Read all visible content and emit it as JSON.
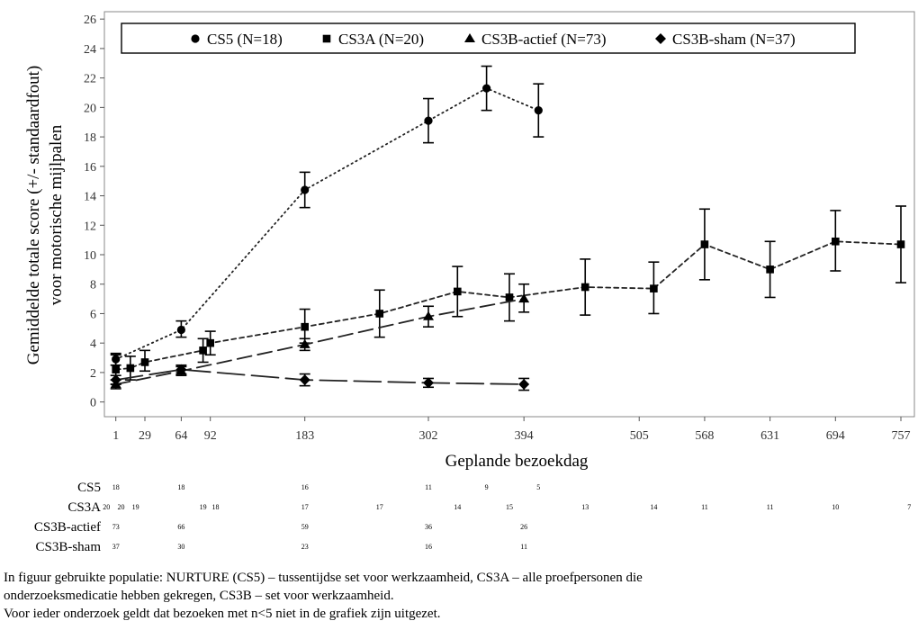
{
  "chart_data": {
    "type": "line",
    "xlabel": "Geplande bezoekdag",
    "ylabel_line1": "Gemiddelde totale score (+/- standaardfout)",
    "ylabel_line2": "voor motorische mijlpalen",
    "xlim": [
      -10,
      770
    ],
    "ylim": [
      -1,
      26.5
    ],
    "x_ticks": [
      1,
      29,
      64,
      92,
      183,
      302,
      394,
      505,
      568,
      631,
      694,
      757
    ],
    "y_ticks": [
      0,
      2,
      4,
      6,
      8,
      10,
      12,
      14,
      16,
      18,
      20,
      22,
      24,
      26
    ],
    "grid": false,
    "legend_position": "top",
    "series": [
      {
        "name": "CS5 (N=18)",
        "marker": "circle",
        "dash": "1.5,4",
        "x": [
          1,
          64,
          183,
          302,
          358,
          408
        ],
        "y": [
          2.9,
          4.9,
          14.4,
          19.1,
          21.3,
          19.8
        ],
        "err_low": [
          2.5,
          4.4,
          13.2,
          17.6,
          19.8,
          18.0
        ],
        "err_high": [
          3.3,
          5.5,
          15.6,
          20.6,
          22.8,
          21.6
        ]
      },
      {
        "name": "CS3A (N=20)",
        "marker": "square",
        "dash": "5,4",
        "x": [
          1,
          15,
          29,
          85,
          92,
          183,
          255,
          330,
          380,
          453,
          519,
          568,
          631,
          694,
          757
        ],
        "y": [
          2.2,
          2.3,
          2.7,
          3.5,
          4.0,
          5.1,
          6.0,
          7.5,
          7.1,
          7.8,
          7.7,
          10.7,
          9.0,
          10.9,
          10.7
        ],
        "err_low": [
          1.2,
          1.5,
          2.1,
          2.7,
          3.2,
          4.0,
          4.4,
          5.8,
          5.5,
          5.9,
          6.0,
          8.3,
          7.1,
          8.9,
          8.1
        ],
        "err_high": [
          3.2,
          3.1,
          3.5,
          4.3,
          4.8,
          6.3,
          7.6,
          9.2,
          8.7,
          9.7,
          9.5,
          13.1,
          10.9,
          13.0,
          13.3
        ]
      },
      {
        "name": "CS3B-actief (N=73)",
        "marker": "triangle",
        "dash": "16,7",
        "x": [
          1,
          64,
          183,
          302,
          394
        ],
        "y": [
          1.2,
          2.1,
          3.9,
          5.8,
          7.0
        ],
        "err_low": [
          0.9,
          1.8,
          3.5,
          5.1,
          6.1
        ],
        "err_high": [
          1.5,
          2.4,
          4.3,
          6.5,
          8.0
        ]
      },
      {
        "name": "CS3B-sham (N=37)",
        "marker": "diamond",
        "dash": "30,8",
        "x": [
          1,
          64,
          183,
          302,
          394
        ],
        "y": [
          1.5,
          2.2,
          1.5,
          1.3,
          1.2
        ],
        "err_low": [
          1.2,
          1.9,
          1.1,
          1.0,
          0.8
        ],
        "err_high": [
          1.8,
          2.5,
          1.9,
          1.6,
          1.6
        ]
      }
    ]
  },
  "risk_table": [
    {
      "name": "CS5",
      "counts": [
        {
          "x": 1,
          "n": "18"
        },
        {
          "x": 64,
          "n": "18"
        },
        {
          "x": 183,
          "n": "16"
        },
        {
          "x": 302,
          "n": "11"
        },
        {
          "x": 358,
          "n": "9"
        },
        {
          "x": 408,
          "n": "5"
        }
      ]
    },
    {
      "name": "CS3A",
      "counts": [
        {
          "x": -8,
          "n": "20"
        },
        {
          "x": 6,
          "n": "20"
        },
        {
          "x": 20,
          "n": "19"
        },
        {
          "x": 85,
          "n": "19"
        },
        {
          "x": 97,
          "n": "18"
        },
        {
          "x": 183,
          "n": "17"
        },
        {
          "x": 255,
          "n": "17"
        },
        {
          "x": 330,
          "n": "14"
        },
        {
          "x": 380,
          "n": "15"
        },
        {
          "x": 453,
          "n": "13"
        },
        {
          "x": 519,
          "n": "14"
        },
        {
          "x": 568,
          "n": "11"
        },
        {
          "x": 631,
          "n": "11"
        },
        {
          "x": 694,
          "n": "10"
        },
        {
          "x": 765,
          "n": "7"
        }
      ]
    },
    {
      "name": "CS3B-actief",
      "counts": [
        {
          "x": 1,
          "n": "73"
        },
        {
          "x": 64,
          "n": "66"
        },
        {
          "x": 183,
          "n": "59"
        },
        {
          "x": 302,
          "n": "36"
        },
        {
          "x": 394,
          "n": "26"
        }
      ]
    },
    {
      "name": "CS3B-sham",
      "counts": [
        {
          "x": 1,
          "n": "37"
        },
        {
          "x": 64,
          "n": "30"
        },
        {
          "x": 183,
          "n": "23"
        },
        {
          "x": 302,
          "n": "16"
        },
        {
          "x": 394,
          "n": "11"
        }
      ]
    }
  ],
  "footnote": {
    "line1": "In figuur gebruikte populatie: NURTURE (CS5) – tussentijdse set voor werkzaamheid, CS3A – alle proefpersonen die",
    "line2": "onderzoeksmedicatie hebben gekregen, CS3B – set voor werkzaamheid.",
    "line3": "Voor ieder onderzoek geldt dat bezoeken met n<5 niet in de grafiek zijn uitgezet."
  }
}
